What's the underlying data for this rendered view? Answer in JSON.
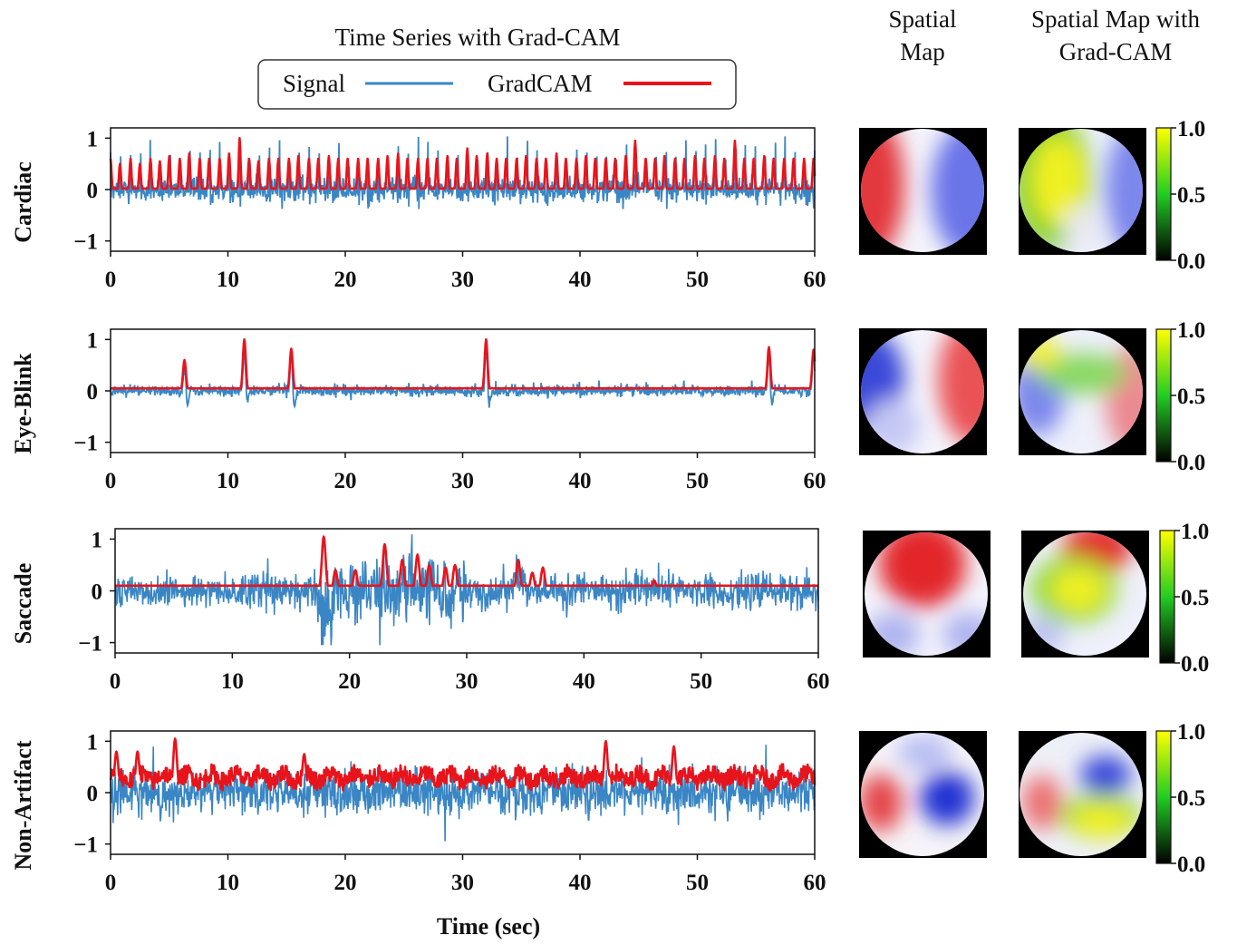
{
  "header": {
    "left_title": "Time Series with Grad-CAM",
    "col2_title_lines": [
      "Spatial",
      "Map"
    ],
    "col3_title_lines": [
      "Spatial Map with",
      "Grad-CAM"
    ]
  },
  "legend": {
    "signal_label": "Signal",
    "gradcam_label": "GradCAM"
  },
  "colors": {
    "signal": "#3a86c4",
    "gradcam": "#e8141c",
    "map_red": "#e0282c",
    "map_blue": "#2a3cd6",
    "cam_yellow": "#ffff00",
    "cam_green": "#22cc22"
  },
  "x_axis_label": "Time (sec)",
  "chart_data": [
    {
      "type": "line",
      "ylabel": "Cardiac",
      "xlim": [
        0,
        60
      ],
      "ylim": [
        -1.2,
        1.2
      ],
      "xticks": [
        0,
        10,
        20,
        30,
        40,
        50,
        60
      ],
      "yticks": [
        -1,
        0,
        1
      ],
      "series": [
        {
          "name": "Signal"
        },
        {
          "name": "GradCAM"
        }
      ],
      "pattern": "periodic_spikes",
      "gradcam_peaks": [
        [
          0.0,
          0.6
        ],
        [
          0.8,
          0.5
        ],
        [
          1.7,
          0.6
        ],
        [
          2.5,
          0.5
        ],
        [
          3.4,
          0.6
        ],
        [
          4.2,
          0.55
        ],
        [
          5.0,
          0.65
        ],
        [
          5.9,
          0.6
        ],
        [
          6.7,
          0.7
        ],
        [
          7.6,
          0.6
        ],
        [
          8.4,
          0.6
        ],
        [
          9.3,
          0.6
        ],
        [
          10.1,
          0.7
        ],
        [
          11.0,
          1.0
        ],
        [
          11.8,
          0.6
        ],
        [
          12.6,
          0.55
        ],
        [
          13.5,
          0.6
        ],
        [
          14.3,
          0.6
        ],
        [
          15.2,
          0.6
        ],
        [
          16.0,
          0.65
        ],
        [
          16.9,
          0.6
        ],
        [
          17.7,
          0.6
        ],
        [
          18.6,
          0.65
        ],
        [
          19.4,
          0.6
        ],
        [
          20.2,
          0.6
        ],
        [
          21.1,
          0.6
        ],
        [
          21.9,
          0.6
        ],
        [
          22.8,
          0.6
        ],
        [
          23.6,
          0.65
        ],
        [
          24.5,
          0.7
        ],
        [
          25.3,
          0.6
        ],
        [
          26.2,
          0.6
        ],
        [
          27.0,
          0.6
        ],
        [
          27.8,
          0.6
        ],
        [
          28.7,
          0.65
        ],
        [
          29.5,
          0.6
        ],
        [
          30.4,
          0.8
        ],
        [
          31.2,
          0.65
        ],
        [
          32.1,
          0.7
        ],
        [
          32.9,
          0.6
        ],
        [
          33.7,
          0.6
        ],
        [
          34.6,
          0.6
        ],
        [
          35.4,
          0.65
        ],
        [
          36.3,
          0.6
        ],
        [
          37.1,
          0.6
        ],
        [
          38.0,
          0.7
        ],
        [
          38.8,
          0.6
        ],
        [
          39.7,
          0.6
        ],
        [
          40.5,
          0.65
        ],
        [
          41.3,
          0.6
        ],
        [
          42.2,
          0.6
        ],
        [
          43.0,
          0.6
        ],
        [
          43.9,
          0.65
        ],
        [
          44.7,
          0.95
        ],
        [
          45.6,
          0.6
        ],
        [
          46.4,
          0.6
        ],
        [
          47.2,
          0.65
        ],
        [
          48.1,
          0.6
        ],
        [
          48.9,
          0.6
        ],
        [
          49.8,
          0.65
        ],
        [
          50.6,
          0.6
        ],
        [
          51.5,
          0.65
        ],
        [
          52.3,
          0.6
        ],
        [
          53.2,
          0.95
        ],
        [
          54.0,
          0.6
        ],
        [
          54.8,
          0.6
        ],
        [
          55.7,
          0.65
        ],
        [
          56.5,
          0.6
        ],
        [
          57.4,
          0.6
        ],
        [
          58.2,
          0.6
        ],
        [
          59.1,
          0.6
        ],
        [
          59.9,
          0.6
        ]
      ],
      "signal_noise": 0.18,
      "gradcam_baseline": 0.02,
      "colorbar_range": [
        0.0,
        1.0
      ],
      "colorbar_ticks": [
        0.0,
        0.5,
        1.0
      ]
    },
    {
      "type": "line",
      "ylabel": "Eye-Blink",
      "xlim": [
        0,
        60
      ],
      "ylim": [
        -1.2,
        1.2
      ],
      "xticks": [
        0,
        10,
        20,
        30,
        40,
        50,
        60
      ],
      "yticks": [
        -1,
        0,
        1
      ],
      "series": [
        {
          "name": "Signal"
        },
        {
          "name": "GradCAM"
        }
      ],
      "pattern": "sparse_spikes",
      "gradcam_peaks": [
        [
          6.3,
          0.6
        ],
        [
          11.4,
          1.0
        ],
        [
          15.4,
          0.82
        ],
        [
          32.0,
          1.0
        ],
        [
          56.1,
          0.85
        ],
        [
          59.9,
          0.8
        ]
      ],
      "signal_noise": 0.08,
      "gradcam_baseline": 0.05,
      "colorbar_range": [
        0.0,
        1.0
      ],
      "colorbar_ticks": [
        0.0,
        0.5,
        1.0
      ]
    },
    {
      "type": "line",
      "ylabel": "Saccade",
      "xlim": [
        0,
        60
      ],
      "ylim": [
        -1.2,
        1.2
      ],
      "xticks": [
        0,
        10,
        20,
        30,
        40,
        50,
        60
      ],
      "yticks": [
        -1,
        0,
        1
      ],
      "series": [
        {
          "name": "Signal"
        },
        {
          "name": "GradCAM"
        }
      ],
      "pattern": "burst",
      "gradcam_peaks": [
        [
          17.8,
          1.05
        ],
        [
          18.8,
          0.4
        ],
        [
          20.5,
          0.4
        ],
        [
          23.0,
          0.9
        ],
        [
          24.5,
          0.6
        ],
        [
          25.8,
          0.7
        ],
        [
          26.8,
          0.5
        ],
        [
          28.2,
          0.45
        ],
        [
          29.0,
          0.5
        ],
        [
          34.4,
          0.6
        ],
        [
          35.6,
          0.35
        ],
        [
          36.5,
          0.45
        ],
        [
          46.0,
          0.2
        ]
      ],
      "signal_noise": 0.3,
      "gradcam_baseline": 0.1,
      "colorbar_range": [
        0.0,
        1.0
      ],
      "colorbar_ticks": [
        0.0,
        0.5,
        1.0
      ]
    },
    {
      "type": "line",
      "ylabel": "Non-Artifact",
      "xlim": [
        0,
        60
      ],
      "ylim": [
        -1.2,
        1.2
      ],
      "xticks": [
        0,
        10,
        20,
        30,
        40,
        50,
        60
      ],
      "yticks": [
        -1,
        0,
        1
      ],
      "series": [
        {
          "name": "Signal"
        },
        {
          "name": "GradCAM"
        }
      ],
      "pattern": "dense_noise",
      "gradcam_peaks": [
        [
          0.5,
          0.8
        ],
        [
          2.3,
          0.8
        ],
        [
          5.5,
          1.05
        ],
        [
          16.5,
          0.75
        ],
        [
          42.2,
          1.0
        ],
        [
          48.0,
          0.9
        ]
      ],
      "signal_noise": 0.38,
      "gradcam_baseline": 0.3,
      "colorbar_range": [
        0.0,
        1.0
      ],
      "colorbar_ticks": [
        0.0,
        0.5,
        1.0
      ]
    }
  ]
}
